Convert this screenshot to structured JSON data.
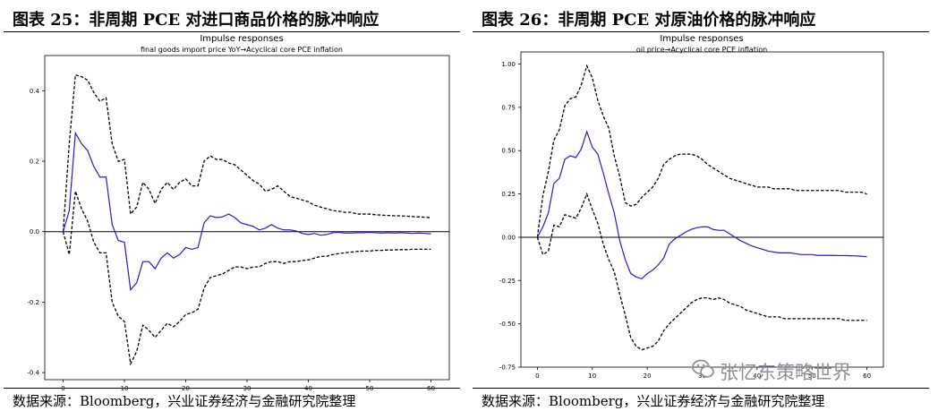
{
  "figures": [
    {
      "title": "图表 25：非周期 PCE 对进口商品价格的脉冲响应",
      "source": "数据来源：Bloomberg，兴业证券经济与金融研究院整理"
    },
    {
      "title": "图表 26：非周期 PCE 对原油价格的脉冲响应",
      "source": "数据来源：Bloomberg，兴业证券经济与金融研究院整理"
    }
  ],
  "watermark": {
    "text": "张忆东策略世界",
    "icon": "wechat-icon"
  },
  "colors": {
    "response": "#1f1fcc",
    "band": "#000000",
    "zero": "#000000"
  },
  "chart_data": [
    {
      "type": "line",
      "title": "Impulse responses",
      "subtitle": "final goods import price YoY→Acyclical core PCE inflation",
      "xlim": [
        -3,
        63
      ],
      "ylim": [
        -0.42,
        0.5
      ],
      "xticks": [
        0,
        10,
        20,
        30,
        40,
        50,
        60
      ],
      "yticks": [
        -0.4,
        -0.2,
        0.0,
        0.2,
        0.4
      ],
      "ytick_labels": [
        "-0.4",
        "-0.2",
        "0.0",
        "0.2",
        "0.4"
      ],
      "zero_line": true,
      "x": [
        0,
        1,
        2,
        3,
        4,
        5,
        6,
        7,
        8,
        9,
        10,
        11,
        12,
        13,
        14,
        15,
        16,
        17,
        18,
        19,
        20,
        21,
        22,
        23,
        24,
        25,
        26,
        27,
        28,
        29,
        30,
        31,
        32,
        33,
        34,
        35,
        36,
        37,
        38,
        39,
        40,
        41,
        42,
        43,
        44,
        45,
        46,
        47,
        48,
        49,
        50,
        51,
        52,
        53,
        54,
        55,
        56,
        57,
        58,
        59,
        60
      ],
      "series": [
        {
          "name": "upper",
          "style": "dashed",
          "values": [
            0.0,
            0.25,
            0.445,
            0.44,
            0.43,
            0.395,
            0.37,
            0.38,
            0.25,
            0.2,
            0.205,
            0.05,
            0.07,
            0.14,
            0.12,
            0.08,
            0.12,
            0.14,
            0.12,
            0.14,
            0.15,
            0.13,
            0.13,
            0.2,
            0.215,
            0.205,
            0.205,
            0.195,
            0.19,
            0.175,
            0.16,
            0.145,
            0.135,
            0.115,
            0.12,
            0.13,
            0.115,
            0.1,
            0.095,
            0.09,
            0.085,
            0.075,
            0.07,
            0.065,
            0.06,
            0.058,
            0.055,
            0.055,
            0.05,
            0.05,
            0.05,
            0.048,
            0.047,
            0.046,
            0.045,
            0.045,
            0.044,
            0.043,
            0.042,
            0.041,
            0.04
          ]
        },
        {
          "name": "response",
          "style": "solid",
          "values": [
            0.0,
            0.06,
            0.28,
            0.25,
            0.23,
            0.185,
            0.155,
            0.155,
            0.02,
            -0.025,
            -0.03,
            -0.165,
            -0.145,
            -0.085,
            -0.085,
            -0.105,
            -0.075,
            -0.06,
            -0.075,
            -0.065,
            -0.045,
            -0.05,
            -0.045,
            0.025,
            0.045,
            0.04,
            0.042,
            0.05,
            0.04,
            0.025,
            0.02,
            0.015,
            0.005,
            0.01,
            0.02,
            0.01,
            0.005,
            0.005,
            0.002,
            -0.005,
            -0.008,
            -0.005,
            -0.01,
            -0.008,
            -0.003,
            -0.002,
            -0.004,
            -0.004,
            -0.003,
            -0.003,
            -0.002,
            -0.003,
            -0.004,
            -0.003,
            -0.004,
            -0.003,
            -0.004,
            -0.005,
            -0.004,
            -0.005,
            -0.006
          ]
        },
        {
          "name": "lower",
          "style": "dashed",
          "values": [
            0.0,
            -0.065,
            0.115,
            0.065,
            0.03,
            -0.03,
            -0.06,
            -0.06,
            -0.2,
            -0.24,
            -0.255,
            -0.375,
            -0.34,
            -0.265,
            -0.28,
            -0.3,
            -0.28,
            -0.26,
            -0.27,
            -0.255,
            -0.235,
            -0.23,
            -0.22,
            -0.16,
            -0.13,
            -0.125,
            -0.12,
            -0.11,
            -0.1,
            -0.1,
            -0.105,
            -0.1,
            -0.1,
            -0.09,
            -0.085,
            -0.085,
            -0.09,
            -0.085,
            -0.085,
            -0.082,
            -0.08,
            -0.075,
            -0.07,
            -0.07,
            -0.065,
            -0.062,
            -0.06,
            -0.058,
            -0.056,
            -0.055,
            -0.055,
            -0.053,
            -0.053,
            -0.052,
            -0.052,
            -0.051,
            -0.051,
            -0.05,
            -0.05,
            -0.05,
            -0.05
          ]
        }
      ]
    },
    {
      "type": "line",
      "title": "Impulse responses",
      "subtitle": "oil price→Acyclical core PCE inflation",
      "xlim": [
        -3,
        63
      ],
      "ylim": [
        -0.75,
        1.07
      ],
      "xticks": [
        0,
        10,
        20,
        30,
        40,
        50,
        60
      ],
      "yticks": [
        -0.75,
        -0.5,
        -0.25,
        0.0,
        0.25,
        0.5,
        0.75,
        1.0
      ],
      "ytick_labels": [
        "-0.75",
        "-0.50",
        "-0.25",
        "0.00",
        "0.25",
        "0.50",
        "0.75",
        "1.00"
      ],
      "zero_line": true,
      "x": [
        0,
        1,
        2,
        3,
        4,
        5,
        6,
        7,
        8,
        9,
        10,
        11,
        12,
        13,
        14,
        15,
        16,
        17,
        18,
        19,
        20,
        21,
        22,
        23,
        24,
        25,
        26,
        27,
        28,
        29,
        30,
        31,
        32,
        33,
        34,
        35,
        36,
        37,
        38,
        39,
        40,
        41,
        42,
        43,
        44,
        45,
        46,
        47,
        48,
        49,
        50,
        51,
        52,
        53,
        54,
        55,
        56,
        57,
        58,
        59,
        60
      ],
      "series": [
        {
          "name": "upper",
          "style": "dashed",
          "values": [
            0.0,
            0.24,
            0.38,
            0.56,
            0.62,
            0.76,
            0.8,
            0.81,
            0.88,
            0.99,
            0.92,
            0.79,
            0.7,
            0.63,
            0.47,
            0.35,
            0.2,
            0.18,
            0.19,
            0.23,
            0.26,
            0.29,
            0.34,
            0.42,
            0.45,
            0.47,
            0.48,
            0.48,
            0.48,
            0.47,
            0.45,
            0.42,
            0.4,
            0.38,
            0.36,
            0.34,
            0.33,
            0.32,
            0.31,
            0.3,
            0.29,
            0.29,
            0.29,
            0.28,
            0.28,
            0.28,
            0.28,
            0.27,
            0.27,
            0.27,
            0.27,
            0.27,
            0.27,
            0.27,
            0.27,
            0.27,
            0.26,
            0.26,
            0.26,
            0.26,
            0.25
          ]
        },
        {
          "name": "response",
          "style": "solid",
          "values": [
            0.0,
            0.06,
            0.14,
            0.31,
            0.34,
            0.45,
            0.47,
            0.46,
            0.51,
            0.61,
            0.52,
            0.48,
            0.37,
            0.25,
            0.14,
            -0.02,
            -0.13,
            -0.21,
            -0.23,
            -0.24,
            -0.21,
            -0.19,
            -0.16,
            -0.12,
            -0.04,
            -0.01,
            0.01,
            0.03,
            0.045,
            0.055,
            0.06,
            0.06,
            0.045,
            0.04,
            0.04,
            0.02,
            0.0,
            -0.02,
            -0.035,
            -0.05,
            -0.06,
            -0.07,
            -0.08,
            -0.085,
            -0.09,
            -0.09,
            -0.09,
            -0.095,
            -0.1,
            -0.1,
            -0.1,
            -0.105,
            -0.105,
            -0.105,
            -0.105,
            -0.106,
            -0.106,
            -0.107,
            -0.108,
            -0.11,
            -0.112
          ]
        },
        {
          "name": "lower",
          "style": "dashed",
          "values": [
            0.0,
            -0.1,
            -0.08,
            0.07,
            0.06,
            0.13,
            0.12,
            0.11,
            0.17,
            0.25,
            0.16,
            0.08,
            -0.04,
            -0.13,
            -0.2,
            -0.33,
            -0.45,
            -0.58,
            -0.63,
            -0.65,
            -0.64,
            -0.63,
            -0.6,
            -0.54,
            -0.5,
            -0.47,
            -0.44,
            -0.41,
            -0.38,
            -0.36,
            -0.35,
            -0.35,
            -0.36,
            -0.35,
            -0.36,
            -0.38,
            -0.39,
            -0.4,
            -0.42,
            -0.43,
            -0.44,
            -0.45,
            -0.46,
            -0.46,
            -0.46,
            -0.47,
            -0.47,
            -0.47,
            -0.47,
            -0.47,
            -0.47,
            -0.47,
            -0.47,
            -0.47,
            -0.47,
            -0.47,
            -0.48,
            -0.48,
            -0.48,
            -0.48,
            -0.48
          ]
        }
      ]
    }
  ]
}
